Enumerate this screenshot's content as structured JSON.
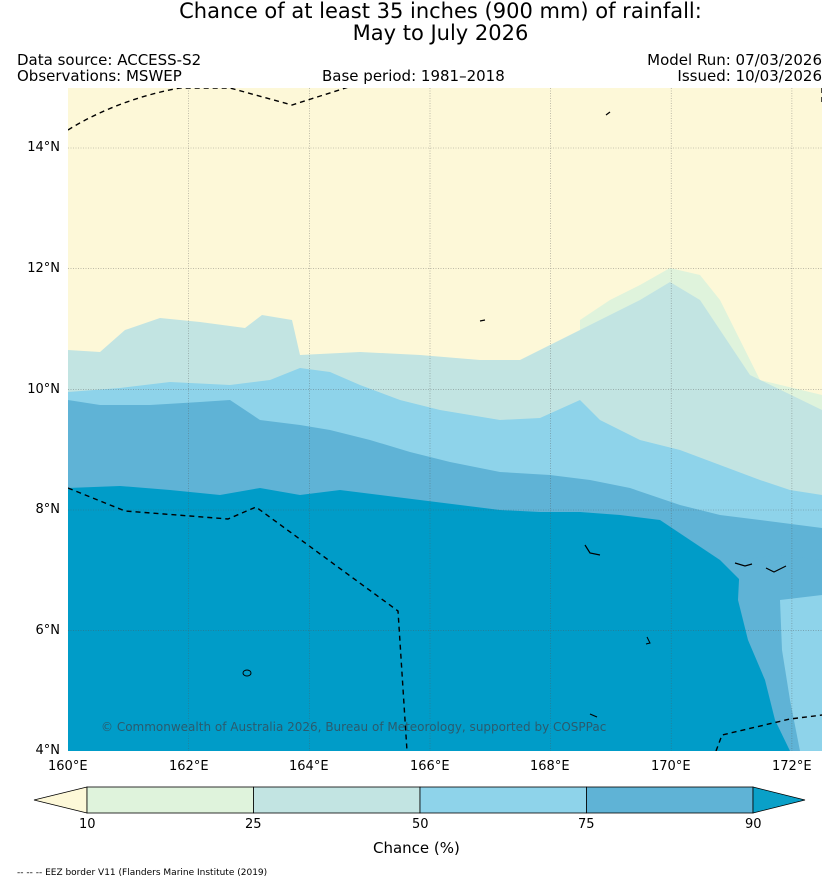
{
  "title": {
    "line1": "Chance of at least 35 inches (900  mm) of rainfall:",
    "line2": "May to July 2026"
  },
  "header": {
    "data_source": "Data source: ACCESS-S2",
    "observations": "Observations: MSWEP",
    "base_period": "Base period: 1981–2018",
    "model_run": "Model Run: 07/03/2026",
    "issued": "Issued: 10/03/2026"
  },
  "map": {
    "lon_labels": [
      "160°E",
      "162°E",
      "164°E",
      "166°E",
      "168°E",
      "170°E",
      "172°E"
    ],
    "lat_labels": [
      "14°N",
      "12°N",
      "10°N",
      "8°N",
      "6°N",
      "4°N"
    ],
    "copyright": "© Commonwealth of Australia 2026, Bureau of Meteorology, supported by COSPPac"
  },
  "legend": {
    "ticks": [
      "10",
      "25",
      "50",
      "75",
      "90"
    ],
    "label": "Chance (%)",
    "colors": [
      "#fdf8d8",
      "#dff3dc",
      "#c2e4e2",
      "#8ed3ea",
      "#5fb3d6",
      "#0aa0c8"
    ],
    "ocean_color": "#009cc8"
  },
  "footnote": "-- -- -- EEZ border V11 (Flanders Marine Institute (2019)"
}
